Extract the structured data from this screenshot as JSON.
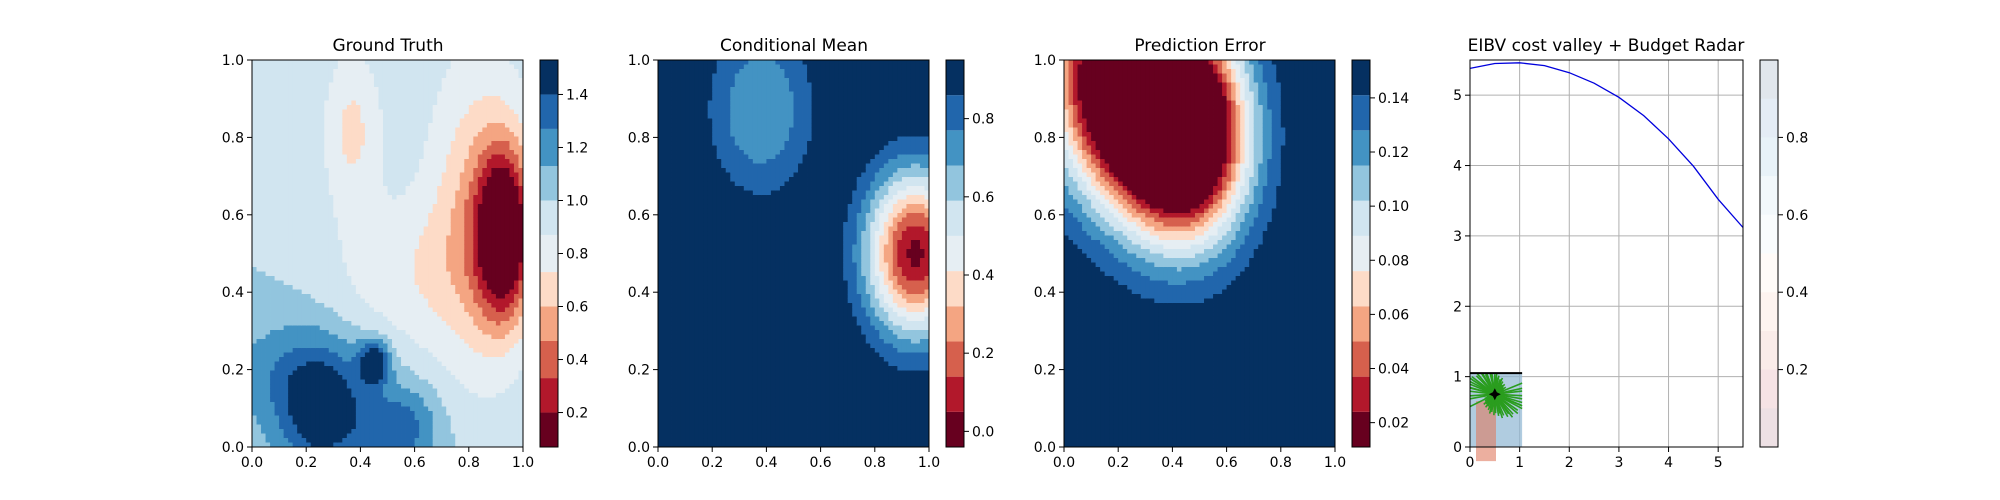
{
  "figure": {
    "panel_titles": [
      "Ground Truth",
      "Conditional Mean",
      "Prediction Error",
      "EIBV cost valley + Budget Radar"
    ]
  },
  "colors": {
    "rdbu": [
      "#67001f",
      "#b2182b",
      "#d6604d",
      "#f4a582",
      "#fddbc7",
      "#e6eef3",
      "#d1e5f0",
      "#92c5de",
      "#4393c3",
      "#2166ac",
      "#053061"
    ],
    "tree": "#2a9d1e",
    "radar": "#0000dd",
    "grid": "#b0b0b0"
  },
  "chart_data": [
    {
      "type": "heatmap",
      "title": "Ground Truth",
      "xlim": [
        0,
        1
      ],
      "ylim": [
        0,
        1
      ],
      "xticks": [
        "0.0",
        "0.2",
        "0.4",
        "0.6",
        "0.8",
        "1.0"
      ],
      "yticks": [
        "0.0",
        "0.2",
        "0.4",
        "0.6",
        "0.8",
        "1.0"
      ],
      "colorbar": {
        "levels": [
          0.07,
          0.2,
          0.33,
          0.47,
          0.6,
          0.73,
          0.87,
          1.0,
          1.13,
          1.27,
          1.4,
          1.53
        ],
        "ticks": [
          "0.2",
          "0.4",
          "0.6",
          "0.8",
          "1.0",
          "1.2",
          "1.4"
        ]
      },
      "features": [
        {
          "kind": "low",
          "x": 0.93,
          "y": 0.55,
          "amp": 0.95,
          "sx": 0.07,
          "sy": 0.15
        },
        {
          "kind": "low",
          "x": 0.84,
          "y": 0.6,
          "amp": 0.4,
          "sx": 0.14,
          "sy": 0.3
        },
        {
          "kind": "low",
          "x": 0.37,
          "y": 0.82,
          "amp": 0.3,
          "sx": 0.08,
          "sy": 0.15
        },
        {
          "kind": "low",
          "x": 0.55,
          "y": 0.45,
          "amp": 0.2,
          "sx": 0.2,
          "sy": 0.14
        },
        {
          "kind": "high",
          "x": 0.26,
          "y": 0.1,
          "amp": 0.55,
          "sx": 0.12,
          "sy": 0.12
        },
        {
          "kind": "high",
          "x": 0.45,
          "y": 0.22,
          "amp": 0.55,
          "sx": 0.04,
          "sy": 0.04
        },
        {
          "kind": "high",
          "x": 0.55,
          "y": 0.05,
          "amp": 0.35,
          "sx": 0.1,
          "sy": 0.08
        },
        {
          "kind": "high",
          "x": 0.08,
          "y": 0.2,
          "amp": 0.15,
          "sx": 0.15,
          "sy": 0.1
        }
      ],
      "baseline": 1.0
    },
    {
      "type": "heatmap",
      "title": "Conditional Mean",
      "xlim": [
        0,
        1
      ],
      "ylim": [
        0,
        1
      ],
      "xticks": [
        "0.0",
        "0.2",
        "0.4",
        "0.6",
        "0.8",
        "1.0"
      ],
      "yticks": [
        "0.0",
        "0.2",
        "0.4",
        "0.6",
        "0.8",
        "1.0"
      ],
      "colorbar": {
        "levels": [
          -0.04,
          0.05,
          0.14,
          0.23,
          0.32,
          0.41,
          0.5,
          0.59,
          0.68,
          0.77,
          0.86,
          0.95
        ],
        "ticks": [
          "0.0",
          "0.2",
          "0.4",
          "0.6",
          "0.8"
        ]
      },
      "features": [
        {
          "kind": "low",
          "x": 0.95,
          "y": 0.5,
          "amp": 0.95,
          "sx": 0.13,
          "sy": 0.15
        },
        {
          "kind": "low",
          "x": 0.38,
          "y": 0.87,
          "amp": 0.3,
          "sx": 0.14,
          "sy": 0.16
        }
      ],
      "baseline": 0.98
    },
    {
      "type": "heatmap",
      "title": "Prediction Error",
      "xlim": [
        0,
        1
      ],
      "ylim": [
        0,
        1
      ],
      "xticks": [
        "0.0",
        "0.2",
        "0.4",
        "0.6",
        "0.8",
        "1.0"
      ],
      "yticks": [
        "0.0",
        "0.2",
        "0.4",
        "0.6",
        "0.8",
        "1.0"
      ],
      "colorbar": {
        "levels": [
          0.011,
          0.024,
          0.037,
          0.05,
          0.063,
          0.076,
          0.089,
          0.102,
          0.115,
          0.128,
          0.141,
          0.154
        ],
        "ticks": [
          "0.02",
          "0.04",
          "0.06",
          "0.08",
          "0.10",
          "0.12",
          "0.14"
        ]
      },
      "features": [
        {
          "kind": "low",
          "x": 0.16,
          "y": 0.96,
          "amp": 0.14,
          "sx": 0.16,
          "sy": 0.2
        },
        {
          "kind": "low",
          "x": 0.37,
          "y": 0.86,
          "amp": 0.14,
          "sx": 0.16,
          "sy": 0.2
        },
        {
          "kind": "low",
          "x": 0.48,
          "y": 0.79,
          "amp": 0.12,
          "sx": 0.15,
          "sy": 0.18
        }
      ],
      "baseline": 0.155
    },
    {
      "type": "line",
      "title": "EIBV cost valley + Budget Radar",
      "xlim": [
        0,
        5.5
      ],
      "ylim": [
        0,
        5.5
      ],
      "xticks": [
        "0",
        "1",
        "2",
        "3",
        "4",
        "5"
      ],
      "yticks": [
        "0",
        "1",
        "2",
        "3",
        "4",
        "5"
      ],
      "grid": true,
      "series": [
        {
          "x": [
            0.0,
            0.5,
            1.0,
            1.5,
            2.0,
            2.5,
            3.0,
            3.5,
            4.0,
            4.5,
            5.0,
            5.5
          ],
          "y": [
            5.38,
            5.45,
            5.46,
            5.42,
            5.32,
            5.17,
            4.97,
            4.71,
            4.38,
            3.99,
            3.52,
            3.12
          ]
        }
      ],
      "costvalley_region": {
        "x": [
          0,
          1.05
        ],
        "y": [
          0,
          1.05
        ]
      },
      "agent_position": {
        "x": 0.5,
        "y": 0.75
      },
      "colorbar": {
        "levels": [
          0.0,
          0.1,
          0.2,
          0.3,
          0.4,
          0.5,
          0.6,
          0.7,
          0.8,
          0.9,
          1.0
        ],
        "ticks": [
          "0.2",
          "0.4",
          "0.6",
          "0.8"
        ]
      }
    }
  ]
}
